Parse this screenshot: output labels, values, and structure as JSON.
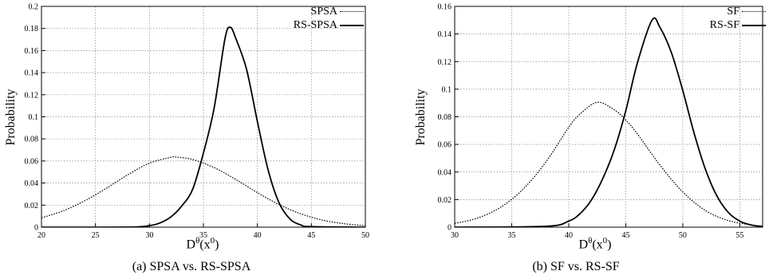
{
  "chart_data": [
    {
      "type": "line",
      "caption": "(a) SPSA vs. RS-SPSA",
      "ylabel": "Probability",
      "xlabel_base": "D",
      "xlabel_sup1": "θ",
      "xlabel_paren": "(x",
      "xlabel_sup2": "0",
      "xlabel_close": ")",
      "xlim": [
        20,
        50
      ],
      "ylim": [
        0,
        0.2
      ],
      "xticks": [
        20,
        25,
        30,
        35,
        40,
        45,
        50
      ],
      "yticks": [
        0,
        0.02,
        0.04,
        0.06,
        0.08,
        0.1,
        0.12,
        0.14,
        0.16,
        0.18,
        0.2
      ],
      "ytick_labels": [
        "0",
        "0.02",
        "0.04",
        "0.06",
        "0.08",
        "0.1",
        "0.12",
        "0.14",
        "0.16",
        "0.18",
        "0.2"
      ],
      "grid": true,
      "legend_position": "top-right",
      "series": [
        {
          "name": "SPSA",
          "style": "dotted",
          "x": [
            20,
            22,
            24,
            26,
            28,
            30,
            32,
            32.5,
            34,
            36,
            38,
            40,
            42,
            44,
            46,
            48,
            50
          ],
          "y": [
            0.0085,
            0.0148,
            0.0239,
            0.0352,
            0.0475,
            0.058,
            0.0633,
            0.0635,
            0.0613,
            0.054,
            0.0432,
            0.0313,
            0.0205,
            0.0122,
            0.0065,
            0.0032,
            0.0014
          ]
        },
        {
          "name": "RS-SPSA",
          "style": "solid",
          "x": [
            20,
            28,
            30,
            31,
            32,
            33,
            34,
            35,
            36,
            37,
            37.5,
            38,
            39,
            40,
            41,
            42,
            43,
            44,
            45,
            50
          ],
          "y": [
            0,
            0.0001,
            0.0014,
            0.0039,
            0.0094,
            0.0193,
            0.0343,
            0.0672,
            0.1083,
            0.171,
            0.181,
            0.171,
            0.1428,
            0.0956,
            0.0516,
            0.0222,
            0.0076,
            0.0021,
            0.0005,
            0
          ]
        }
      ]
    },
    {
      "type": "line",
      "caption": "(b) SF vs. RS-SF",
      "ylabel": "Probability",
      "xlabel_base": "D",
      "xlabel_sup1": "θ",
      "xlabel_paren": "(x",
      "xlabel_sup2": "0",
      "xlabel_close": ")",
      "xlim": [
        30,
        57
      ],
      "ylim": [
        0,
        0.16
      ],
      "xticks": [
        30,
        35,
        40,
        45,
        50,
        55
      ],
      "yticks": [
        0,
        0.02,
        0.04,
        0.06,
        0.08,
        0.1,
        0.12,
        0.14,
        0.16
      ],
      "ytick_labels": [
        "0",
        "0.02",
        "0.04",
        "0.06",
        "0.08",
        "0.1",
        "0.12",
        "0.14",
        "0.16"
      ],
      "grid": true,
      "legend_position": "top-right",
      "series": [
        {
          "name": "SF",
          "style": "dotted",
          "x": [
            30,
            32,
            34,
            36,
            38,
            40,
            41,
            42.5,
            44,
            45,
            46,
            48,
            50,
            52,
            54,
            56,
            57
          ],
          "y": [
            0.0027,
            0.0066,
            0.0143,
            0.0276,
            0.0473,
            0.0724,
            0.082,
            0.0905,
            0.085,
            0.0776,
            0.0678,
            0.045,
            0.0255,
            0.012,
            0.0048,
            0.0016,
            0.0009
          ]
        },
        {
          "name": "RS-SF",
          "style": "solid",
          "x": [
            30,
            38,
            40,
            41,
            42,
            43,
            44,
            45,
            46,
            47.3,
            48,
            49,
            50,
            51,
            52,
            53,
            54,
            55,
            56,
            57
          ],
          "y": [
            0,
            0.0006,
            0.0044,
            0.0099,
            0.0199,
            0.0355,
            0.0563,
            0.0843,
            0.1185,
            0.15,
            0.1448,
            0.1265,
            0.099,
            0.0679,
            0.0416,
            0.0225,
            0.0106,
            0.0044,
            0.0016,
            0.0005
          ]
        }
      ]
    }
  ]
}
